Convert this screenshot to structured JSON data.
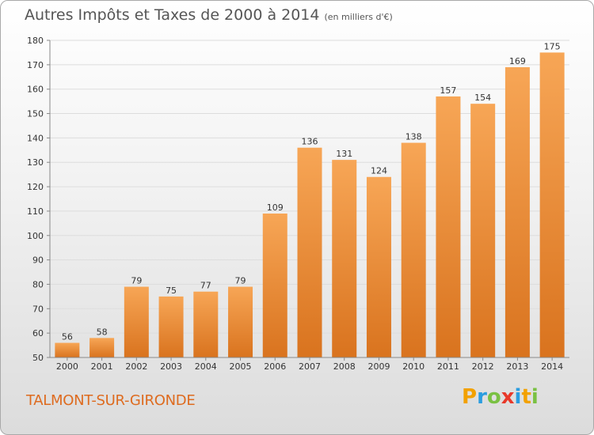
{
  "title": "Autres Impôts et Taxes de 2000 à 2014",
  "unit_note": "(en milliers d'€)",
  "place_name": "TALMONT-SUR-GIRONDE",
  "logo": {
    "text": "Proxiti"
  },
  "colors": {
    "bar_light": "#f7a656",
    "bar_dark": "#d9731e",
    "place": "#de6b1f",
    "grid": "#dddddd",
    "axis_text": "#333333"
  },
  "chart_data": {
    "type": "bar",
    "title": "Autres Impôts et Taxes de 2000 à 2014",
    "subtitle": "(en milliers d'€)",
    "categories": [
      "2000",
      "2001",
      "2002",
      "2003",
      "2004",
      "2005",
      "2006",
      "2007",
      "2008",
      "2009",
      "2010",
      "2011",
      "2012",
      "2013",
      "2014"
    ],
    "values": [
      56,
      58,
      79,
      75,
      77,
      79,
      109,
      136,
      131,
      124,
      138,
      157,
      154,
      169,
      175
    ],
    "ylim": [
      50,
      180
    ],
    "yticks": [
      50,
      60,
      70,
      80,
      90,
      100,
      110,
      120,
      130,
      140,
      150,
      160,
      170,
      180
    ],
    "grid": true,
    "data_labels": true
  }
}
